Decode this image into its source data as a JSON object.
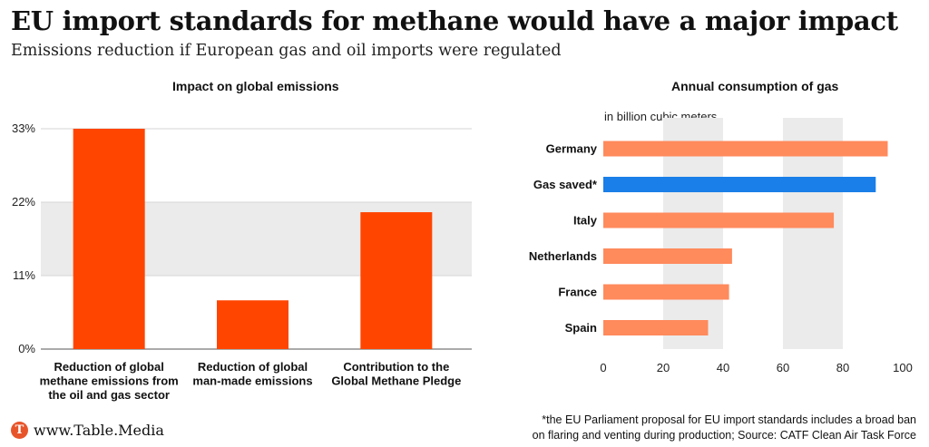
{
  "header": {
    "title": "EU import standards for methane would have a major impact",
    "subtitle": "Emissions reduction if European gas and oil imports were regulated"
  },
  "chart_data": [
    {
      "type": "bar",
      "title": "Impact on global emissions",
      "categories": [
        [
          "Reduction of global",
          "methane emissions from",
          "the oil and gas sector"
        ],
        [
          "Reduction of global",
          "man-made emissions"
        ],
        [
          "Contribution to the",
          "Global Methane Pledge"
        ]
      ],
      "values": [
        33,
        7.3,
        20.5
      ],
      "yticks": [
        "0%",
        "11%",
        "22%",
        "33%"
      ],
      "ytick_values": [
        0,
        11,
        22,
        33
      ],
      "ylim": [
        0,
        33
      ],
      "color": "#ff4500",
      "grid": "alternating horizontal bands"
    },
    {
      "type": "bar",
      "orientation": "horizontal",
      "title": "Annual consumption of gas",
      "unit_label": "in billion cubic meters",
      "categories": [
        "Germany",
        "Gas saved*",
        "Italy",
        "Netherlands",
        "France",
        "Spain"
      ],
      "values": [
        95,
        91,
        77,
        43,
        42,
        35
      ],
      "colors": [
        "#ff8a5c",
        "#1a7fe8",
        "#ff8a5c",
        "#ff8a5c",
        "#ff8a5c",
        "#ff8a5c"
      ],
      "xticks": [
        "0",
        "20",
        "40",
        "60",
        "80",
        "100"
      ],
      "xtick_values": [
        0,
        20,
        40,
        60,
        80,
        100
      ],
      "xlim": [
        0,
        100
      ],
      "grid": "alternating vertical bands"
    }
  ],
  "footer": {
    "logo_letter": "T",
    "site": "www.Table.Media",
    "footnote_line1": "*the EU Parliament proposal for EU import standards includes a broad ban",
    "footnote_line2": "on flaring and venting during production; Source: CATF Clean Air Task Force"
  }
}
